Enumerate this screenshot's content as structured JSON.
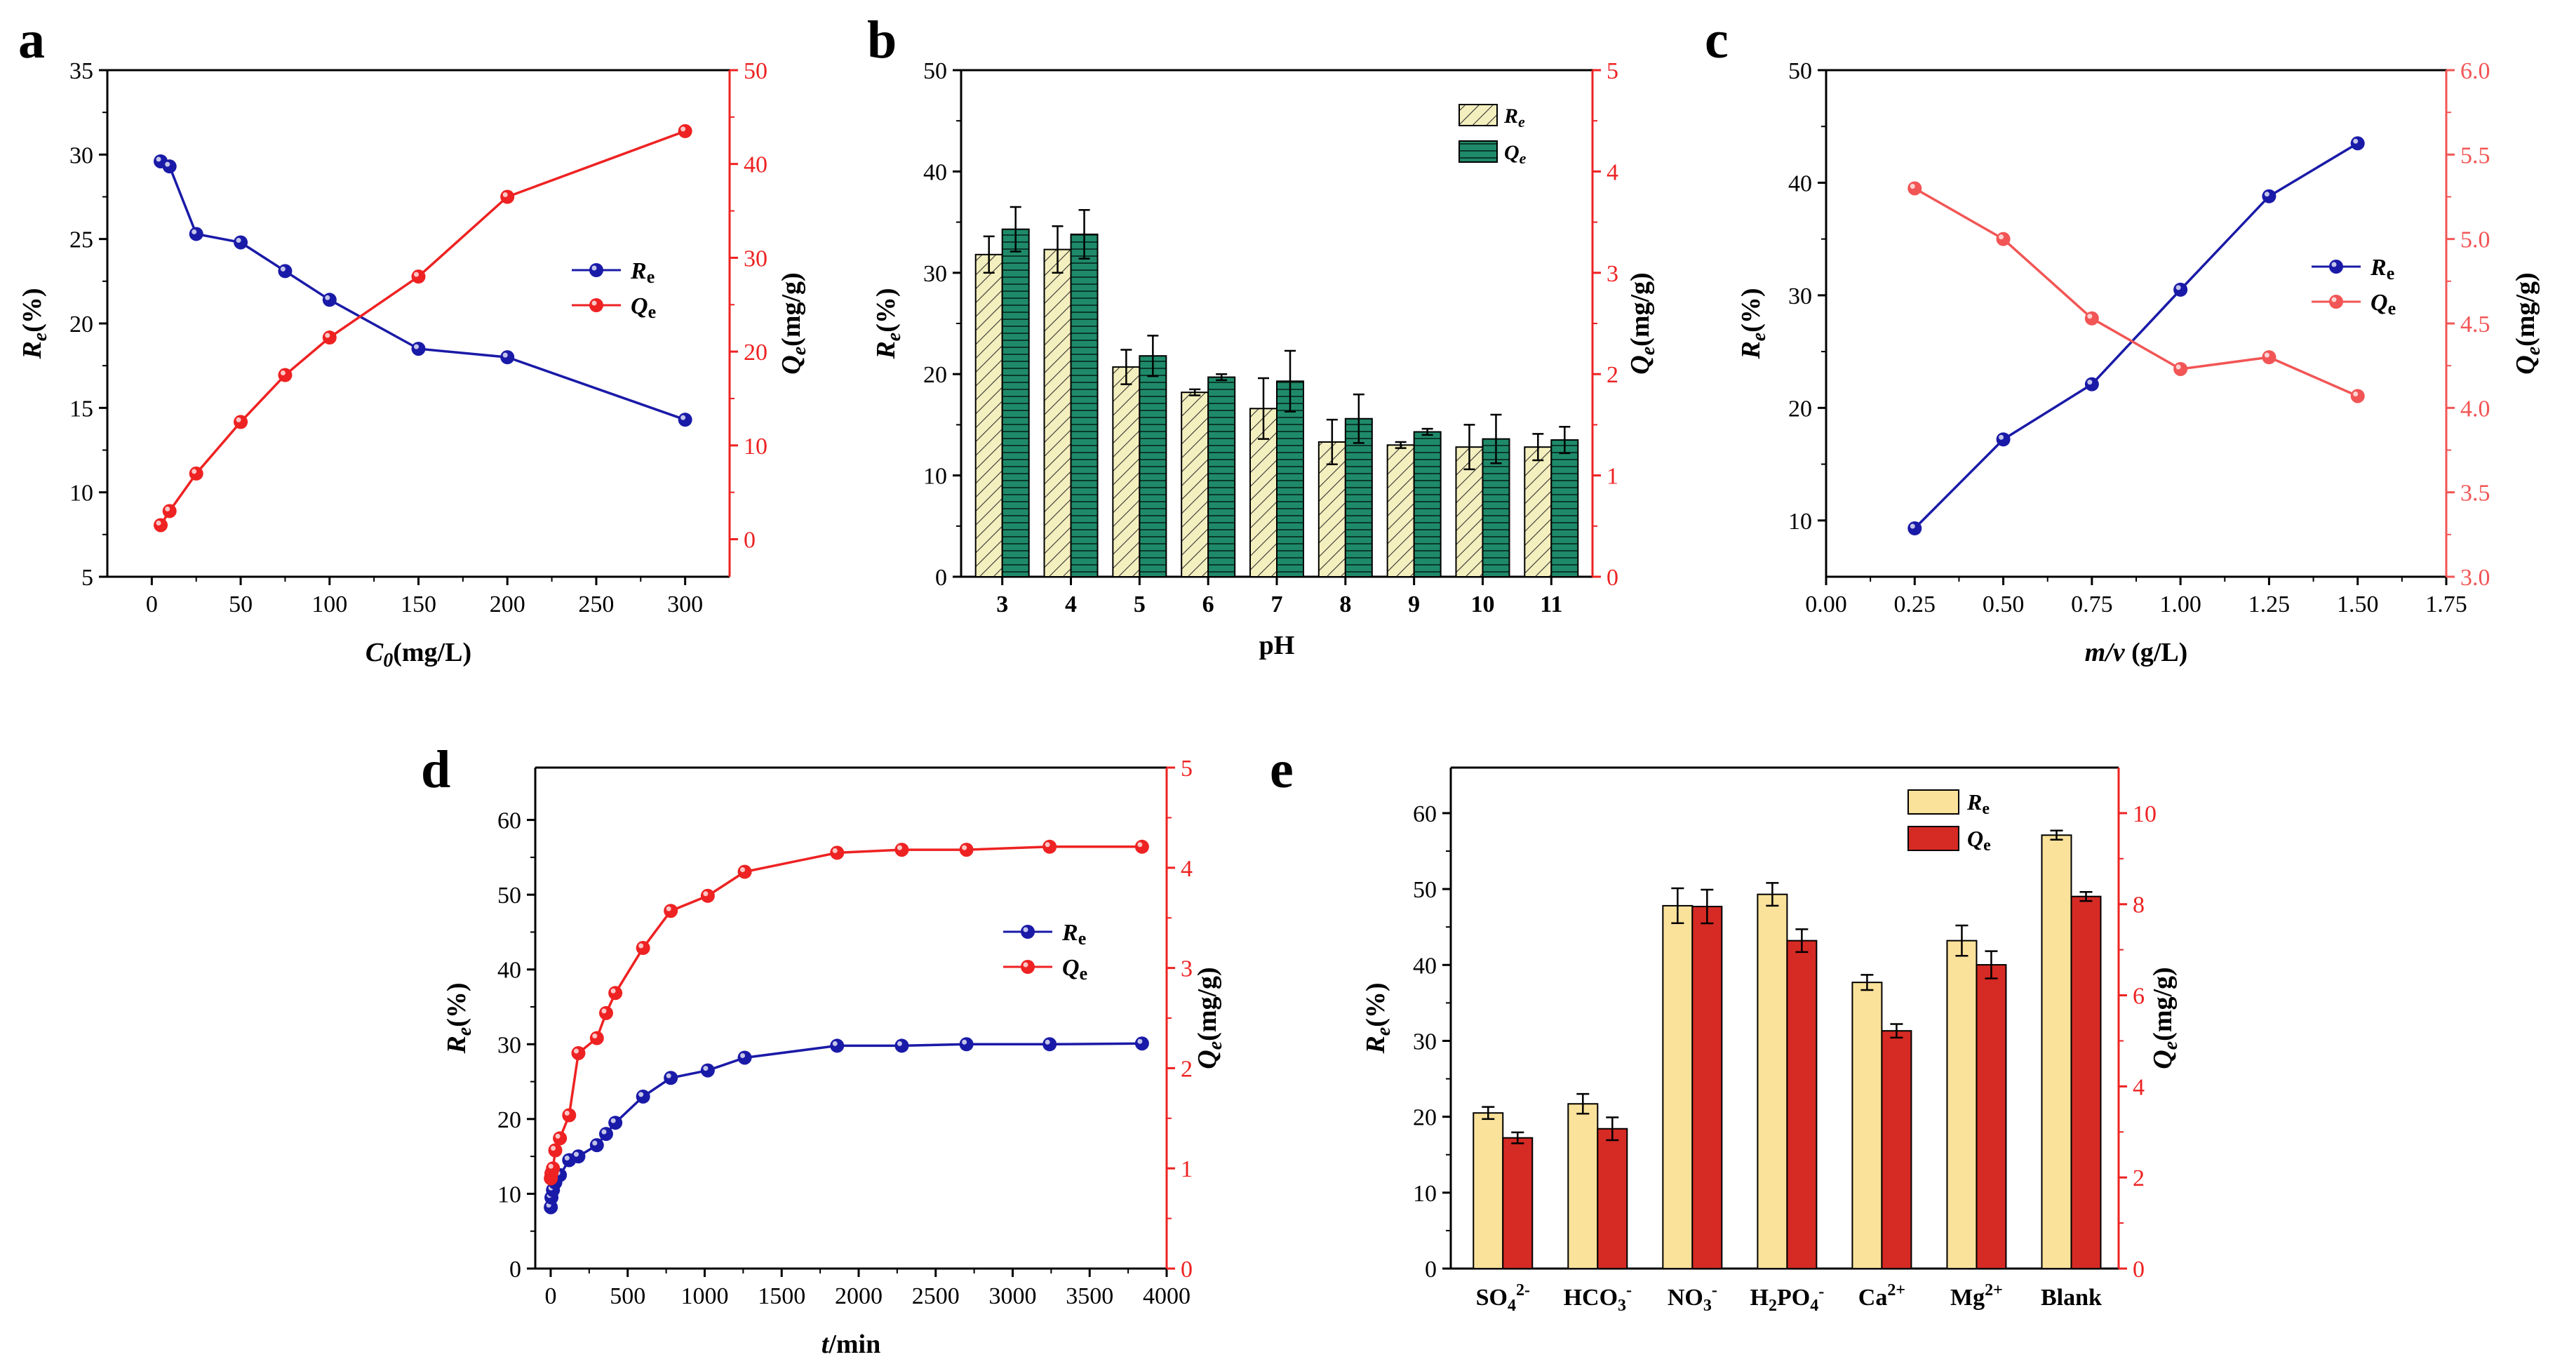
{
  "colors": {
    "blue": "#1a1aa8",
    "red": "#ee2222",
    "red_light": "#f25555",
    "green": "#1f8a6a",
    "hatch_fill": "#f4efbe",
    "yellow": "#fbe29b",
    "dark_red": "#d62a24",
    "axis": "#000000"
  },
  "chart_data": [
    {
      "panel": "a",
      "type": "line",
      "title": "",
      "xlabel_main": "C",
      "xlabel_sub": "0",
      "xlabel_unit": "(mg/L)",
      "ylabel_left": {
        "main": "R",
        "sub": "e",
        "unit": "(%)"
      },
      "ylabel_right": {
        "main": "Q",
        "sub": "e",
        "unit": "(mg/g)"
      },
      "xlim": [
        -25,
        325
      ],
      "xticks": [
        0,
        50,
        100,
        150,
        200,
        250,
        300
      ],
      "ylim_left": [
        5,
        35
      ],
      "yticks_left": [
        5,
        10,
        15,
        20,
        25,
        30,
        35
      ],
      "ylim_right": [
        -4,
        50
      ],
      "yticks_right": [
        0,
        10,
        20,
        30,
        40,
        50
      ],
      "legend": "right-middle",
      "series": [
        {
          "name_main": "R",
          "name_sub": "e",
          "axis": "left",
          "color": "#1a1aa8",
          "x": [
            5,
            10,
            25,
            50,
            75,
            100,
            150,
            200,
            300
          ],
          "y": [
            29.6,
            29.3,
            25.3,
            24.8,
            23.1,
            21.4,
            18.5,
            18.0,
            14.3
          ]
        },
        {
          "name_main": "Q",
          "name_sub": "e",
          "axis": "right",
          "color": "#ee2222",
          "x": [
            5,
            10,
            25,
            50,
            75,
            100,
            150,
            200,
            300
          ],
          "y": [
            1.5,
            3.0,
            7.0,
            12.5,
            17.5,
            21.5,
            28.0,
            36.5,
            43.5
          ]
        }
      ]
    },
    {
      "panel": "b",
      "type": "bar",
      "title": "",
      "xlabel": "pH",
      "ylabel_left": {
        "main": "R",
        "sub": "e",
        "unit": "(%)"
      },
      "ylabel_right": {
        "main": "Q",
        "sub": "e",
        "unit": "(mg/g)"
      },
      "categories": [
        "3",
        "4",
        "5",
        "6",
        "7",
        "8",
        "9",
        "10",
        "11"
      ],
      "ylim_left": [
        0,
        50
      ],
      "yticks_left": [
        0,
        10,
        20,
        30,
        40,
        50
      ],
      "ylim_right": [
        0,
        5
      ],
      "yticks_right": [
        0,
        1,
        2,
        3,
        4,
        5
      ],
      "legend": "top-right",
      "series": [
        {
          "name_main": "R",
          "name_sub": "e",
          "axis": "left",
          "style": "hatched",
          "values": [
            31.8,
            32.3,
            20.7,
            18.2,
            16.6,
            13.3,
            13.0,
            12.8,
            12.8
          ],
          "errors": [
            1.8,
            2.3,
            1.7,
            0.3,
            3.0,
            2.2,
            0.3,
            2.2,
            1.3
          ]
        },
        {
          "name_main": "Q",
          "name_sub": "e",
          "axis": "right",
          "style": "striped",
          "values": [
            3.43,
            3.38,
            2.18,
            1.97,
            1.93,
            1.56,
            1.43,
            1.36,
            1.35
          ],
          "errors": [
            0.22,
            0.24,
            0.2,
            0.03,
            0.3,
            0.24,
            0.03,
            0.24,
            0.13
          ]
        }
      ]
    },
    {
      "panel": "c",
      "type": "line",
      "title": "",
      "xlabel_main": "m/v",
      "xlabel_unit": " (g/L)",
      "ylabel_left": {
        "main": "R",
        "sub": "e",
        "unit": "(%)"
      },
      "ylabel_right": {
        "main": "Q",
        "sub": "e",
        "unit": "(mg/g)"
      },
      "xlim": [
        0,
        1.75
      ],
      "xticks": [
        "0.00",
        "0.25",
        "0.50",
        "0.75",
        "1.00",
        "1.25",
        "1.50",
        "1.75"
      ],
      "ylim_left": [
        5,
        50
      ],
      "yticks_left": [
        10,
        20,
        30,
        40,
        50
      ],
      "ylim_right": [
        3.0,
        6.0
      ],
      "yticks_right": [
        "3.0",
        "3.5",
        "4.0",
        "4.5",
        "5.0",
        "5.5",
        "6.0"
      ],
      "legend": "right-middle",
      "series": [
        {
          "name_main": "R",
          "name_sub": "e",
          "axis": "left",
          "color": "#1a1aa8",
          "x": [
            0.25,
            0.5,
            0.75,
            1.0,
            1.25,
            1.5
          ],
          "y": [
            9.3,
            17.2,
            22.1,
            30.5,
            38.8,
            43.5
          ]
        },
        {
          "name_main": "Q",
          "name_sub": "e",
          "axis": "right",
          "color": "#f25555",
          "x": [
            0.25,
            0.5,
            0.75,
            1.0,
            1.25,
            1.5
          ],
          "y": [
            5.3,
            5.0,
            4.53,
            4.23,
            4.3,
            4.07
          ]
        }
      ]
    },
    {
      "panel": "d",
      "type": "line",
      "title": "",
      "xlabel_main": "t",
      "xlabel_unit": "/min",
      "ylabel_left": {
        "main": "R",
        "sub": "e",
        "unit": "(%)"
      },
      "ylabel_right": {
        "main": "Q",
        "sub": "e",
        "unit": "(mg/g)"
      },
      "xlim": [
        -100,
        4000
      ],
      "xticks": [
        0,
        500,
        1000,
        1500,
        2000,
        2500,
        3000,
        3500,
        4000
      ],
      "ylim_left": [
        0,
        67
      ],
      "yticks_left": [
        0,
        10,
        20,
        30,
        40,
        50,
        60
      ],
      "ylim_right": [
        0,
        5
      ],
      "yticks_right": [
        0,
        1,
        2,
        3,
        4,
        5
      ],
      "legend": "right-middle",
      "series": [
        {
          "name_main": "R",
          "name_sub": "e",
          "axis": "left",
          "color": "#1a1aa8",
          "x": [
            1,
            5,
            15,
            30,
            60,
            120,
            180,
            300,
            360,
            420,
            600,
            780,
            1020,
            1260,
            1860,
            2280,
            2700,
            3240,
            3840
          ],
          "y": [
            8.2,
            9.5,
            10.5,
            11.5,
            12.5,
            14.5,
            15.0,
            16.5,
            18.0,
            19.5,
            23.0,
            25.5,
            26.5,
            28.2,
            29.8,
            29.8,
            30.0,
            30.0,
            30.1
          ]
        },
        {
          "name_main": "Q",
          "name_sub": "e",
          "axis": "right",
          "color": "#ee2222",
          "x": [
            1,
            5,
            15,
            30,
            60,
            120,
            180,
            300,
            360,
            420,
            600,
            780,
            1020,
            1260,
            1860,
            2280,
            2700,
            3240,
            3840
          ],
          "y": [
            0.9,
            0.95,
            1.0,
            1.18,
            1.3,
            1.53,
            2.15,
            2.3,
            2.55,
            2.75,
            3.2,
            3.57,
            3.72,
            3.96,
            4.15,
            4.18,
            4.18,
            4.21,
            4.21
          ]
        }
      ]
    },
    {
      "panel": "e",
      "type": "bar",
      "title": "",
      "ylabel_left": {
        "main": "R",
        "sub": "e",
        "unit": "(%)"
      },
      "ylabel_right": {
        "main": "Q",
        "sub": "e",
        "unit": "(mg/g)"
      },
      "categories": [
        {
          "base": "SO",
          "sub": "4",
          "sup": "2-",
          "tail": ""
        },
        {
          "base": "HCO",
          "sub": "3",
          "sup": "-",
          "tail": ""
        },
        {
          "base": "NO",
          "sub": "3",
          "sup": "-",
          "tail": ""
        },
        {
          "base": "H",
          "sub": "2",
          "sup": "",
          "tail": "PO",
          "sub2": "4",
          "sup2": "-"
        },
        {
          "base": "Ca",
          "sub": "",
          "sup": "2+",
          "tail": ""
        },
        {
          "base": "Mg",
          "sub": "",
          "sup": "2+",
          "tail": ""
        },
        {
          "base": "Blank",
          "sub": "",
          "sup": "",
          "tail": ""
        }
      ],
      "ylim_left": [
        0,
        66
      ],
      "yticks_left": [
        0,
        10,
        20,
        30,
        40,
        50,
        60
      ],
      "ylim_right": [
        0,
        11
      ],
      "yticks_right": [
        0,
        2,
        4,
        6,
        8,
        10
      ],
      "legend": "top-right",
      "series": [
        {
          "name_main": "R",
          "name_sub": "e",
          "axis": "left",
          "color": "#fbe29b",
          "values": [
            20.5,
            21.7,
            47.8,
            49.3,
            37.7,
            43.2,
            57.1
          ],
          "errors": [
            0.8,
            1.3,
            2.3,
            1.5,
            1.0,
            2.0,
            0.6
          ]
        },
        {
          "name_main": "Q",
          "name_sub": "e",
          "axis": "right",
          "color": "#d62a24",
          "values": [
            2.87,
            3.07,
            7.95,
            7.2,
            5.22,
            6.67,
            8.17
          ],
          "errors": [
            0.12,
            0.25,
            0.37,
            0.25,
            0.15,
            0.3,
            0.1
          ]
        }
      ]
    }
  ],
  "panel_labels": [
    "a",
    "b",
    "c",
    "d",
    "e"
  ]
}
